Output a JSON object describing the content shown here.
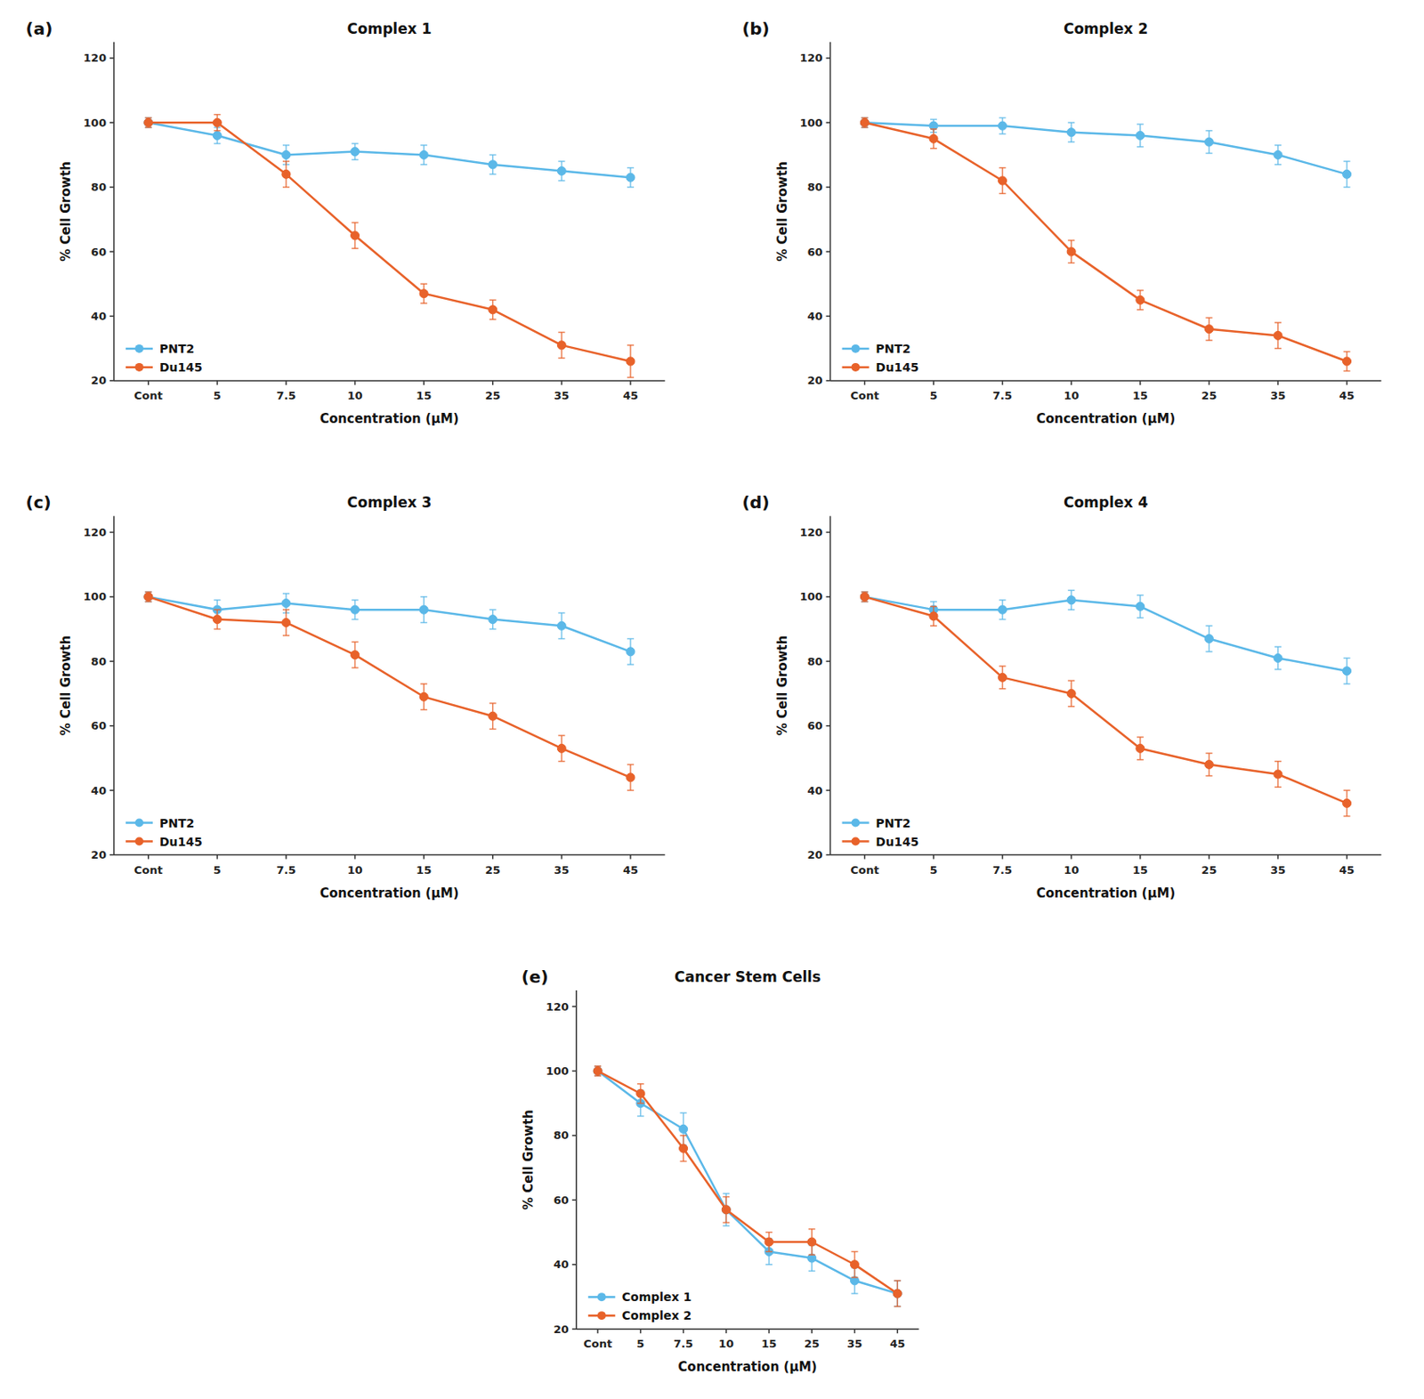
{
  "chart_data": [
    {
      "type": "line",
      "title": "Complex 1",
      "annotations": [
        "(a)"
      ],
      "xlabel": "Concentration (μM)",
      "ylabel": "% Cell Growth",
      "categories": [
        "Cont",
        "5",
        "7.5",
        "10",
        "15",
        "25",
        "35",
        "45"
      ],
      "series": [
        {
          "name": "PNT2",
          "color": "#5BB8E8",
          "marker": "circle",
          "values": [
            100,
            96,
            90,
            91,
            90,
            87,
            85,
            83
          ],
          "errors": [
            1.5,
            2.5,
            3,
            2.5,
            3,
            3,
            3,
            3
          ]
        },
        {
          "name": "Du145",
          "color": "#E8622A",
          "marker": "circle",
          "values": [
            100,
            100,
            84,
            65,
            47,
            42,
            31,
            26
          ],
          "errors": [
            1.5,
            2.5,
            4,
            4,
            3,
            3,
            4,
            5
          ]
        }
      ],
      "ylim": [
        20,
        125
      ],
      "yticks": [
        20,
        40,
        60,
        80,
        100,
        120
      ],
      "grid": false,
      "legend": "lower left"
    },
    {
      "type": "line",
      "title": "Complex 2",
      "annotations": [
        "(b)"
      ],
      "xlabel": "Concentration (μM)",
      "ylabel": "% Cell Growth",
      "categories": [
        "Cont",
        "5",
        "7.5",
        "10",
        "15",
        "25",
        "35",
        "45"
      ],
      "series": [
        {
          "name": "PNT2",
          "color": "#5BB8E8",
          "marker": "circle",
          "values": [
            100,
            99,
            99,
            97,
            96,
            94,
            90,
            84
          ],
          "errors": [
            1.5,
            2,
            2.5,
            3,
            3.5,
            3.5,
            3,
            4
          ]
        },
        {
          "name": "Du145",
          "color": "#E8622A",
          "marker": "circle",
          "values": [
            100,
            95,
            82,
            60,
            45,
            36,
            34,
            26
          ],
          "errors": [
            1.5,
            3,
            4,
            3.5,
            3,
            3.5,
            4,
            3
          ]
        }
      ],
      "ylim": [
        20,
        125
      ],
      "yticks": [
        20,
        40,
        60,
        80,
        100,
        120
      ],
      "grid": false,
      "legend": "lower left"
    },
    {
      "type": "line",
      "title": "Complex 3",
      "annotations": [
        "(c)"
      ],
      "xlabel": "Concentration (μM)",
      "ylabel": "% Cell Growth",
      "categories": [
        "Cont",
        "5",
        "7.5",
        "10",
        "15",
        "25",
        "35",
        "45"
      ],
      "series": [
        {
          "name": "PNT2",
          "color": "#5BB8E8",
          "marker": "circle",
          "values": [
            100,
            96,
            98,
            96,
            96,
            93,
            91,
            83
          ],
          "errors": [
            1.5,
            3,
            3,
            3,
            4,
            3,
            4,
            4
          ]
        },
        {
          "name": "Du145",
          "color": "#E8622A",
          "marker": "circle",
          "values": [
            100,
            93,
            92,
            82,
            69,
            63,
            53,
            44
          ],
          "errors": [
            1.5,
            3,
            4,
            4,
            4,
            4,
            4,
            4
          ]
        }
      ],
      "ylim": [
        20,
        125
      ],
      "yticks": [
        20,
        40,
        60,
        80,
        100,
        120
      ],
      "grid": false,
      "legend": "lower left"
    },
    {
      "type": "line",
      "title": "Complex 4",
      "annotations": [
        "(d)"
      ],
      "xlabel": "Concentration (μM)",
      "ylabel": "% Cell Growth",
      "categories": [
        "Cont",
        "5",
        "7.5",
        "10",
        "15",
        "25",
        "35",
        "45"
      ],
      "series": [
        {
          "name": "PNT2",
          "color": "#5BB8E8",
          "marker": "circle",
          "values": [
            100,
            96,
            96,
            99,
            97,
            87,
            81,
            77
          ],
          "errors": [
            1.5,
            2.5,
            3,
            3,
            3.5,
            4,
            3.5,
            4
          ]
        },
        {
          "name": "Du145",
          "color": "#E8622A",
          "marker": "circle",
          "values": [
            100,
            94,
            75,
            70,
            53,
            48,
            45,
            36
          ],
          "errors": [
            1.5,
            3,
            3.5,
            4,
            3.5,
            3.5,
            4,
            4
          ]
        }
      ],
      "ylim": [
        20,
        125
      ],
      "yticks": [
        20,
        40,
        60,
        80,
        100,
        120
      ],
      "grid": false,
      "legend": "lower left"
    },
    {
      "type": "line",
      "title": "Cancer Stem Cells",
      "annotations": [
        "(e)"
      ],
      "xlabel": "Concentration (μM)",
      "ylabel": "% Cell Growth",
      "categories": [
        "Cont",
        "5",
        "7.5",
        "10",
        "15",
        "25",
        "35",
        "45"
      ],
      "series": [
        {
          "name": "Complex 1",
          "color": "#5BB8E8",
          "marker": "circle",
          "values": [
            100,
            90,
            82,
            57,
            44,
            42,
            35,
            31
          ],
          "errors": [
            1.5,
            4,
            5,
            5,
            4,
            4,
            4,
            4
          ]
        },
        {
          "name": "Complex 2",
          "color": "#E8622A",
          "marker": "circle",
          "values": [
            100,
            93,
            76,
            57,
            47,
            47,
            40,
            31
          ],
          "errors": [
            1.5,
            3,
            4,
            4,
            3,
            4,
            4,
            4
          ]
        }
      ],
      "ylim": [
        20,
        125
      ],
      "yticks": [
        20,
        40,
        60,
        80,
        100,
        120
      ],
      "grid": false,
      "legend": "lower left"
    }
  ]
}
